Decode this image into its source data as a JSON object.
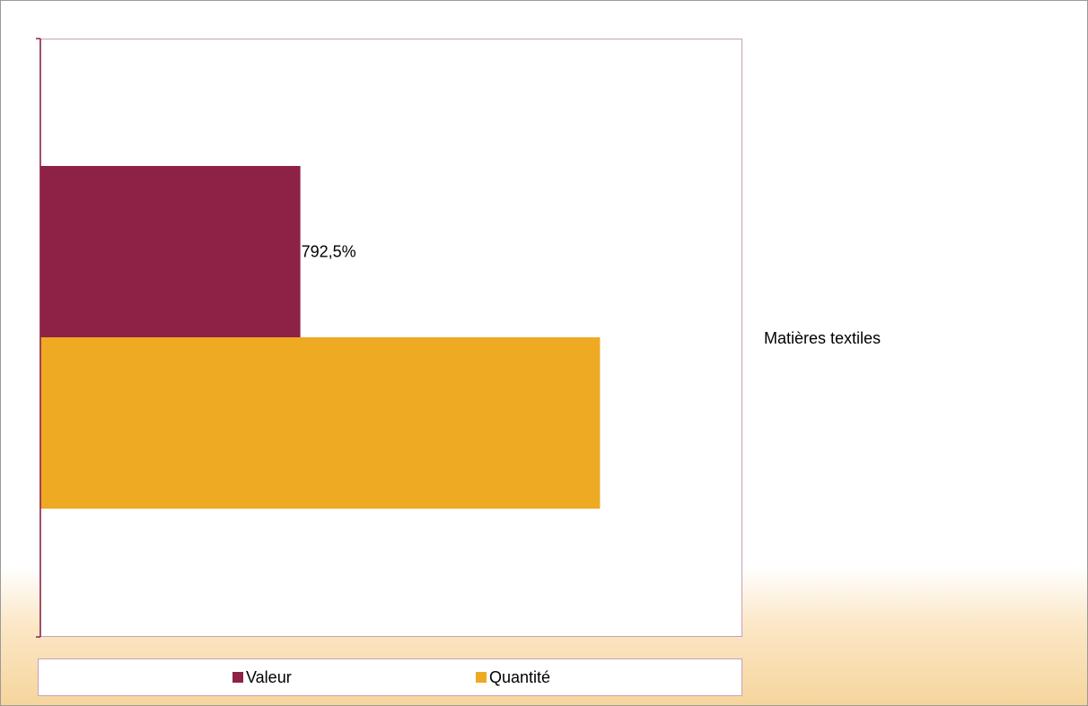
{
  "chart_data": {
    "type": "bar",
    "orientation": "horizontal",
    "categories": [
      "Matières textiles"
    ],
    "series": [
      {
        "name": "Valeur",
        "values": [
          792.5
        ],
        "color": "#8e2246",
        "data_label": "792,5%"
      },
      {
        "name": "Quantité",
        "values": [
          1706
        ],
        "color": "#eeaa22"
      }
    ],
    "xlim": [
      0,
      2140
    ],
    "x_axis_visible": false,
    "legend_position": "bottom",
    "grid": false
  }
}
